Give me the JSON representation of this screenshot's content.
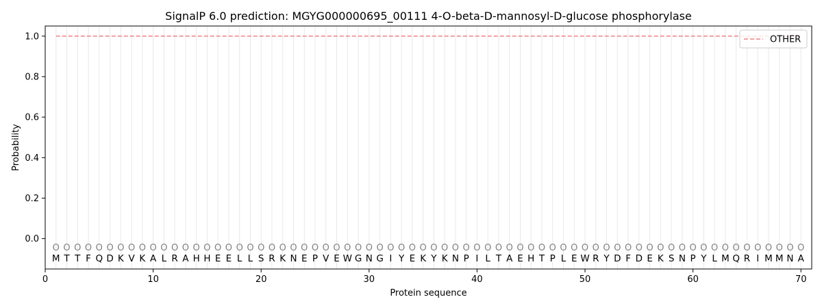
{
  "chart_data": {
    "type": "line",
    "title": "SignalP 6.0 prediction: MGYG000000695_00111 4-O-beta-D-mannosyl-D-glucose phosphorylase",
    "xlabel": "Protein sequence",
    "ylabel": "Probability",
    "xlim": [
      0,
      71
    ],
    "ylim": [
      -0.15,
      1.05
    ],
    "xticks": [
      0,
      10,
      20,
      30,
      40,
      50,
      60,
      70
    ],
    "yticks": [
      0.0,
      0.2,
      0.4,
      0.6,
      0.8,
      1.0
    ],
    "ytick_labels": [
      "0.0",
      "0.2",
      "0.4",
      "0.6",
      "0.8",
      "1.0"
    ],
    "sequence": [
      "M",
      "T",
      "T",
      "F",
      "Q",
      "D",
      "K",
      "V",
      "K",
      "A",
      "L",
      "R",
      "A",
      "H",
      "H",
      "E",
      "E",
      "L",
      "L",
      "S",
      "R",
      "K",
      "N",
      "E",
      "P",
      "V",
      "E",
      "W",
      "G",
      "N",
      "G",
      "I",
      "Y",
      "E",
      "K",
      "Y",
      "K",
      "N",
      "P",
      "I",
      "L",
      "T",
      "A",
      "E",
      "H",
      "T",
      "P",
      "L",
      "E",
      "W",
      "R",
      "Y",
      "D",
      "F",
      "D",
      "E",
      "K",
      "S",
      "N",
      "P",
      "Y",
      "L",
      "M",
      "Q",
      "R",
      "I",
      "M",
      "M",
      "N",
      "A"
    ],
    "state_label": "O",
    "series": [
      {
        "name": "OTHER",
        "color": "#f08080",
        "style": "dashed",
        "x_start": 1,
        "x_end": 70,
        "values": [
          1.0
        ]
      }
    ],
    "legend_position": "top-right",
    "grid": "vertical lines at each residue"
  }
}
